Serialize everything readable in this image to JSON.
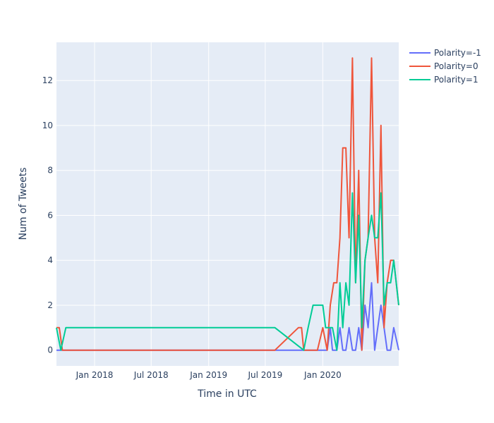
{
  "chart_data": {
    "type": "line",
    "xlabel": "Time in UTC",
    "ylabel": "Num of Tweets",
    "x_ticks": [
      "Jan 2018",
      "Jul 2018",
      "Jan 2019",
      "Jul 2019",
      "Jan 2020"
    ],
    "x_tick_dates": [
      "2018-01-01",
      "2018-07-01",
      "2019-01-01",
      "2019-07-01",
      "2020-01-01"
    ],
    "x_range": [
      "2017-09-01",
      "2020-08-31"
    ],
    "y_ticks": [
      "0",
      "2",
      "4",
      "6",
      "8",
      "10",
      "12"
    ],
    "y_range": [
      -0.7,
      13.7
    ],
    "legend_position": "top-right",
    "grid": true,
    "colors": {
      "plot_bg": "#e5ecf6",
      "grid": "#ffffff",
      "text": "#2a3f5f",
      "series": [
        "#636efa",
        "#ef553b",
        "#00cc96"
      ]
    },
    "series": [
      {
        "name": "Polarity=-1",
        "x": [
          "2017-09-01",
          "2017-09-15",
          "2017-10-01",
          "2019-08-01",
          "2019-11-01",
          "2020-01-01",
          "2020-01-15",
          "2020-01-25",
          "2020-02-01",
          "2020-02-15",
          "2020-02-25",
          "2020-03-05",
          "2020-03-15",
          "2020-03-25",
          "2020-04-05",
          "2020-04-15",
          "2020-04-25",
          "2020-05-05",
          "2020-05-15",
          "2020-05-25",
          "2020-06-05",
          "2020-06-15",
          "2020-06-25",
          "2020-07-05",
          "2020-07-15",
          "2020-07-25",
          "2020-08-05",
          "2020-08-15",
          "2020-08-31"
        ],
        "y": [
          0,
          0,
          0,
          0,
          0,
          0,
          0,
          1,
          0,
          0,
          1,
          0,
          0,
          1,
          0,
          0,
          1,
          0,
          2,
          1,
          3,
          0,
          1,
          2,
          1,
          0,
          0,
          1,
          0
        ]
      },
      {
        "name": "Polarity=0",
        "x": [
          "2017-09-01",
          "2017-09-10",
          "2017-09-20",
          "2017-10-01",
          "2019-08-01",
          "2019-10-15",
          "2019-10-25",
          "2019-11-01",
          "2019-11-15",
          "2019-12-01",
          "2019-12-15",
          "2020-01-01",
          "2020-01-15",
          "2020-01-25",
          "2020-02-05",
          "2020-02-15",
          "2020-02-25",
          "2020-03-05",
          "2020-03-15",
          "2020-03-25",
          "2020-04-05",
          "2020-04-15",
          "2020-04-25",
          "2020-05-05",
          "2020-05-15",
          "2020-05-25",
          "2020-06-05",
          "2020-06-15",
          "2020-06-25",
          "2020-07-05",
          "2020-07-15",
          "2020-07-25",
          "2020-08-05",
          "2020-08-15",
          "2020-08-31"
        ],
        "y": [
          1,
          1,
          0,
          0,
          0,
          1,
          1,
          0,
          0,
          0,
          0,
          1,
          0,
          2,
          3,
          3,
          5,
          9,
          9,
          5,
          13,
          3,
          8,
          0,
          4,
          5,
          13,
          5,
          3,
          10,
          1,
          3,
          4,
          4,
          2
        ]
      },
      {
        "name": "Polarity=1",
        "x": [
          "2017-09-01",
          "2017-09-15",
          "2017-10-01",
          "2019-08-01",
          "2019-11-01",
          "2019-11-15",
          "2019-12-01",
          "2020-01-01",
          "2020-01-10",
          "2020-01-20",
          "2020-02-01",
          "2020-02-15",
          "2020-02-25",
          "2020-03-05",
          "2020-03-15",
          "2020-03-25",
          "2020-04-05",
          "2020-04-15",
          "2020-04-25",
          "2020-05-05",
          "2020-05-15",
          "2020-05-25",
          "2020-06-05",
          "2020-06-15",
          "2020-06-25",
          "2020-07-05",
          "2020-07-15",
          "2020-07-25",
          "2020-08-05",
          "2020-08-15",
          "2020-08-31"
        ],
        "y": [
          1,
          0,
          1,
          1,
          0,
          1,
          2,
          2,
          1,
          1,
          1,
          0,
          3,
          1,
          3,
          2,
          7,
          3,
          6,
          1,
          4,
          5,
          6,
          5,
          5,
          7,
          2,
          3,
          3,
          4,
          2
        ]
      }
    ]
  }
}
